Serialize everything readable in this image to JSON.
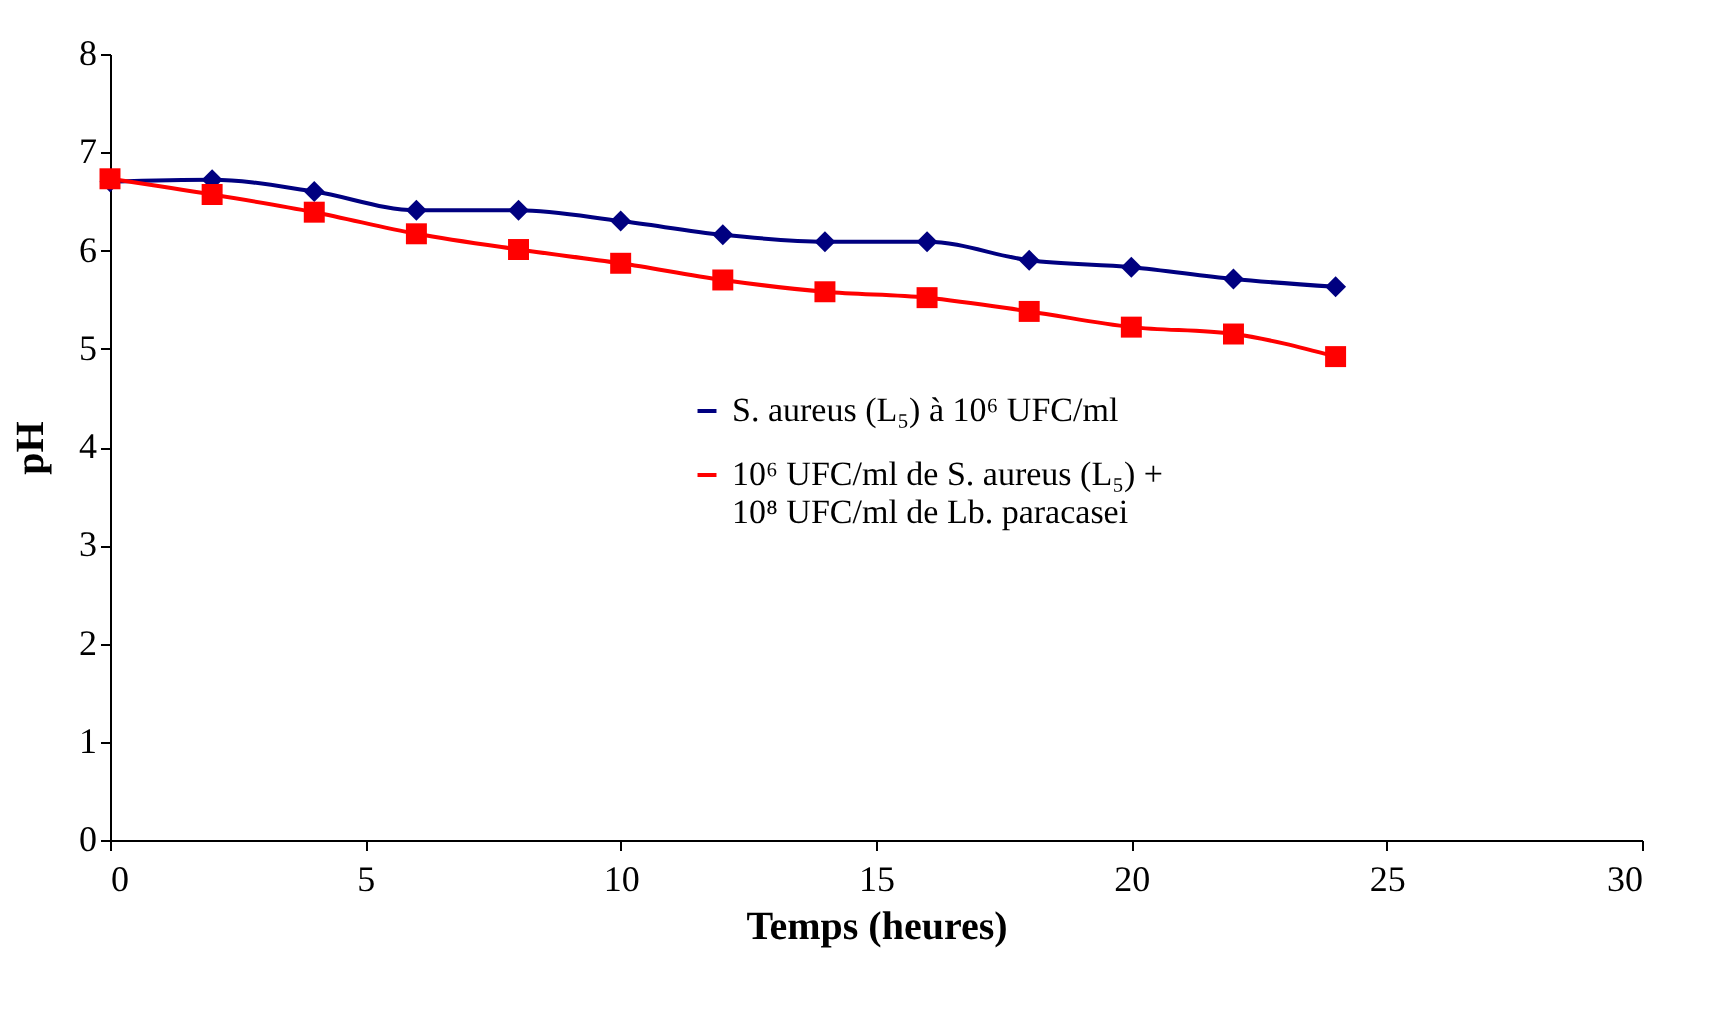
{
  "chart_data": {
    "type": "line",
    "xlabel": "Temps (heures)",
    "ylabel": "pH",
    "x": [
      0,
      2,
      4,
      6,
      8,
      10,
      12,
      14,
      16,
      18,
      20,
      22,
      24
    ],
    "series": [
      {
        "name": "S. aureus (L₅) à 10⁶ UFC/ml",
        "color": "#000080",
        "marker": "diamond",
        "values": [
          6.7,
          6.72,
          6.6,
          6.41,
          6.41,
          6.3,
          6.16,
          6.09,
          6.09,
          5.9,
          5.83,
          5.71,
          5.63
        ]
      },
      {
        "name": "10⁶ UFC/ml de S. aureus (L₅) +\n10⁸ UFC/ml de Lb. paracasei",
        "color": "#ff0000",
        "marker": "square",
        "values": [
          6.73,
          6.57,
          6.39,
          6.17,
          6.01,
          5.87,
          5.7,
          5.58,
          5.52,
          5.38,
          5.22,
          5.15,
          4.92
        ]
      }
    ],
    "xlim": [
      0,
      30
    ],
    "xticks": [
      0,
      5,
      10,
      15,
      20,
      25,
      30
    ],
    "ylim": [
      0,
      8
    ],
    "yticks": [
      0,
      1,
      2,
      3,
      4,
      5,
      6,
      7,
      8
    ],
    "grid": false,
    "legend": "right",
    "line_style": "solid"
  }
}
